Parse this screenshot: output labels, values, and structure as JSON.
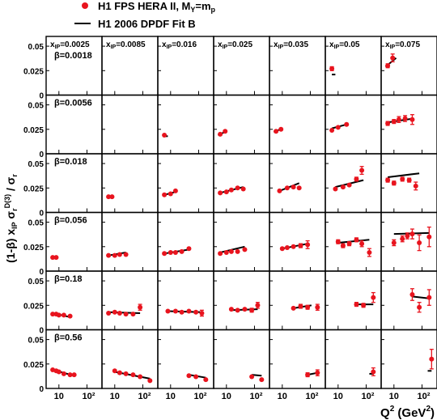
{
  "legend": {
    "data_label": "H1 FPS HERA II,  M",
    "data_label_sub": "Y",
    "data_label_tail": "=m",
    "data_label_tail_sub": "p",
    "model_label": "H1 2006 DPDF Fit B",
    "placement": "top-left",
    "data_color": "#e8141e",
    "model_color": "#000000"
  },
  "xlabel": {
    "main": "Q",
    "sup": "2",
    "unit": " (GeV",
    "unit_sup": "2",
    "close": ")"
  },
  "ylabel": {
    "prefix": "(1-β) x",
    "prefix_sub": "IP",
    "mid": " σ",
    "mid_sub": "r",
    "mid_sup": "D(3)",
    "suffix": " / σ",
    "suffix_sub": "r"
  },
  "chart_data": {
    "type": "scatter",
    "layout": "grid",
    "rows": 6,
    "cols": 7,
    "x_scale": "log",
    "xlim": [
      4,
      300
    ],
    "ylim": [
      0,
      0.06
    ],
    "y_ticks": [
      "0.05",
      "0.025",
      "0"
    ],
    "y_tick_values": [
      0.05,
      0.025,
      0
    ],
    "x_ticks": [
      "10",
      "10²"
    ],
    "x_tick_values": [
      10,
      100
    ],
    "series": [
      {
        "name": "H1 FPS HERA II,  MY=mp",
        "kind": "points",
        "color": "#e8141e"
      },
      {
        "name": "H1 2006 DPDF Fit B",
        "kind": "line",
        "color": "#000000"
      }
    ],
    "column_labels": [
      {
        "pre": "x",
        "sub": "IP",
        "post": "=0.0025"
      },
      {
        "pre": "x",
        "sub": "IP",
        "post": "=0.0085"
      },
      {
        "pre": "x",
        "sub": "IP",
        "post": "=0.016"
      },
      {
        "pre": "x",
        "sub": "IP",
        "post": "=0.025"
      },
      {
        "pre": "x",
        "sub": "IP",
        "post": "=0.035"
      },
      {
        "pre": "x",
        "sub": "IP",
        "post": "=0.05"
      },
      {
        "pre": "x",
        "sub": "IP",
        "post": "=0.075"
      }
    ],
    "row_labels": [
      "β=0.0018",
      "β=0.0056",
      "β=0.018",
      "β=0.056",
      "β=0.18",
      "β=0.56"
    ],
    "panels": [
      {
        "row": 0,
        "col": 5,
        "points": [
          [
            6,
            0.027,
            0.002
          ]
        ],
        "line": [
          [
            6,
            0.021
          ],
          [
            8,
            0.021
          ]
        ]
      },
      {
        "row": 0,
        "col": 6,
        "points": [
          [
            6,
            0.03,
            0.002
          ],
          [
            9,
            0.038,
            0.004
          ]
        ],
        "line": [
          [
            5,
            0.029
          ],
          [
            12,
            0.038
          ]
        ]
      },
      {
        "row": 1,
        "col": 2,
        "points": [
          [
            6,
            0.019,
            0.001
          ]
        ],
        "line": [
          [
            6,
            0.018
          ],
          [
            8,
            0.018
          ]
        ]
      },
      {
        "row": 1,
        "col": 3,
        "points": [
          [
            6,
            0.02,
            0.001
          ],
          [
            9,
            0.023,
            0.001
          ]
        ],
        "line": [
          [
            5,
            0.019
          ],
          [
            10,
            0.023
          ]
        ]
      },
      {
        "row": 1,
        "col": 4,
        "points": [
          [
            6,
            0.023,
            0.001
          ],
          [
            9,
            0.025,
            0.001
          ]
        ],
        "line": [
          [
            5,
            0.022
          ],
          [
            10,
            0.026
          ]
        ]
      },
      {
        "row": 1,
        "col": 5,
        "points": [
          [
            6,
            0.024,
            0.001
          ],
          [
            10,
            0.027,
            0.001
          ],
          [
            20,
            0.03,
            0.001
          ]
        ],
        "line": [
          [
            6,
            0.026
          ],
          [
            20,
            0.03
          ]
        ]
      },
      {
        "row": 1,
        "col": 6,
        "points": [
          [
            6,
            0.031,
            0.002
          ],
          [
            10,
            0.033,
            0.002
          ],
          [
            15,
            0.035,
            0.003
          ],
          [
            25,
            0.036,
            0.003
          ],
          [
            45,
            0.035,
            0.005
          ]
        ],
        "line": [
          [
            6,
            0.032
          ],
          [
            50,
            0.036
          ]
        ]
      },
      {
        "row": 2,
        "col": 1,
        "points": [
          [
            6,
            0.016,
            0.001
          ],
          [
            8,
            0.016,
            0.001
          ]
        ],
        "line": []
      },
      {
        "row": 2,
        "col": 2,
        "points": [
          [
            6,
            0.018,
            0.001
          ],
          [
            10,
            0.019,
            0.001
          ],
          [
            15,
            0.022,
            0.001
          ]
        ],
        "line": [
          [
            6,
            0.018
          ],
          [
            15,
            0.021
          ]
        ]
      },
      {
        "row": 2,
        "col": 3,
        "points": [
          [
            6,
            0.02,
            0.001
          ],
          [
            10,
            0.021,
            0.001
          ],
          [
            15,
            0.023,
            0.001
          ],
          [
            25,
            0.025,
            0.001
          ],
          [
            40,
            0.024,
            0.001
          ]
        ],
        "line": [
          [
            6,
            0.02
          ],
          [
            40,
            0.026
          ]
        ]
      },
      {
        "row": 2,
        "col": 4,
        "points": [
          [
            8,
            0.022,
            0.001
          ],
          [
            15,
            0.025,
            0.001
          ],
          [
            25,
            0.026,
            0.001
          ],
          [
            40,
            0.025,
            0.001
          ]
        ],
        "line": [
          [
            8,
            0.022
          ],
          [
            40,
            0.03
          ]
        ]
      },
      {
        "row": 2,
        "col": 5,
        "points": [
          [
            8,
            0.024,
            0.001
          ],
          [
            15,
            0.026,
            0.001
          ],
          [
            25,
            0.028,
            0.001
          ],
          [
            45,
            0.034,
            0.002
          ],
          [
            70,
            0.043,
            0.004
          ]
        ],
        "line": [
          [
            8,
            0.026
          ],
          [
            80,
            0.033
          ]
        ]
      },
      {
        "row": 2,
        "col": 6,
        "points": [
          [
            6,
            0.033,
            0.002
          ],
          [
            10,
            0.03,
            0.002
          ],
          [
            20,
            0.034,
            0.002
          ],
          [
            35,
            0.033,
            0.002
          ],
          [
            60,
            0.027,
            0.004
          ]
        ],
        "line": [
          [
            6,
            0.036
          ],
          [
            80,
            0.04
          ]
        ]
      },
      {
        "row": 3,
        "col": 0,
        "points": [
          [
            6,
            0.014,
            0.001
          ],
          [
            8,
            0.014,
            0.001
          ]
        ],
        "line": []
      },
      {
        "row": 3,
        "col": 1,
        "points": [
          [
            6,
            0.016,
            0.001
          ],
          [
            10,
            0.016,
            0.001
          ],
          [
            15,
            0.017,
            0.001
          ],
          [
            25,
            0.017,
            0.001
          ]
        ],
        "line": [
          [
            6,
            0.016
          ],
          [
            25,
            0.019
          ]
        ]
      },
      {
        "row": 3,
        "col": 2,
        "points": [
          [
            6,
            0.018,
            0.001
          ],
          [
            10,
            0.019,
            0.001
          ],
          [
            15,
            0.019,
            0.001
          ],
          [
            25,
            0.02,
            0.001
          ],
          [
            45,
            0.023,
            0.001
          ]
        ],
        "line": [
          [
            6,
            0.018
          ],
          [
            45,
            0.022
          ]
        ]
      },
      {
        "row": 3,
        "col": 3,
        "points": [
          [
            6,
            0.018,
            0.001
          ],
          [
            10,
            0.019,
            0.001
          ],
          [
            15,
            0.02,
            0.001
          ],
          [
            25,
            0.02,
            0.001
          ],
          [
            45,
            0.022,
            0.001
          ]
        ],
        "line": [
          [
            6,
            0.019
          ],
          [
            45,
            0.025
          ]
        ]
      },
      {
        "row": 3,
        "col": 4,
        "points": [
          [
            10,
            0.023,
            0.001
          ],
          [
            15,
            0.024,
            0.001
          ],
          [
            25,
            0.025,
            0.001
          ],
          [
            45,
            0.026,
            0.002
          ],
          [
            80,
            0.027,
            0.004
          ]
        ],
        "line": [
          [
            10,
            0.023
          ],
          [
            80,
            0.028
          ]
        ]
      },
      {
        "row": 3,
        "col": 5,
        "points": [
          [
            10,
            0.03,
            0.002
          ],
          [
            15,
            0.026,
            0.002
          ],
          [
            25,
            0.028,
            0.002
          ],
          [
            45,
            0.032,
            0.002
          ],
          [
            70,
            0.028,
            0.003
          ],
          [
            130,
            0.019,
            0.004
          ]
        ],
        "line": [
          [
            10,
            0.029
          ],
          [
            130,
            0.032
          ]
        ]
      },
      {
        "row": 3,
        "col": 6,
        "points": [
          [
            10,
            0.029,
            0.003
          ],
          [
            20,
            0.033,
            0.003
          ],
          [
            30,
            0.036,
            0.003
          ],
          [
            45,
            0.038,
            0.005
          ],
          [
            80,
            0.029,
            0.008
          ],
          [
            180,
            0.035,
            0.01
          ]
        ],
        "line": [
          [
            10,
            0.038
          ],
          [
            180,
            0.039
          ]
        ]
      },
      {
        "row": 4,
        "col": 0,
        "points": [
          [
            6,
            0.016,
            0.001
          ],
          [
            8,
            0.016,
            0.001
          ],
          [
            10,
            0.015,
            0.001
          ],
          [
            15,
            0.015,
            0.001
          ],
          [
            25,
            0.014,
            0.001
          ]
        ],
        "line": [
          [
            6,
            0.017
          ],
          [
            25,
            0.013
          ]
        ]
      },
      {
        "row": 4,
        "col": 1,
        "points": [
          [
            6,
            0.017,
            0.001
          ],
          [
            10,
            0.018,
            0.001
          ],
          [
            15,
            0.017,
            0.001
          ],
          [
            25,
            0.016,
            0.001
          ],
          [
            45,
            0.016,
            0.001
          ],
          [
            80,
            0.023,
            0.003
          ]
        ],
        "line": [
          [
            6,
            0.018
          ],
          [
            80,
            0.017
          ]
        ]
      },
      {
        "row": 4,
        "col": 2,
        "points": [
          [
            8,
            0.019,
            0.001
          ],
          [
            15,
            0.019,
            0.001
          ],
          [
            25,
            0.018,
            0.001
          ],
          [
            45,
            0.019,
            0.001
          ],
          [
            80,
            0.018,
            0.001
          ],
          [
            130,
            0.017,
            0.003
          ]
        ],
        "line": [
          [
            8,
            0.019
          ],
          [
            130,
            0.018
          ]
        ]
      },
      {
        "row": 4,
        "col": 3,
        "points": [
          [
            15,
            0.021,
            0.001
          ],
          [
            25,
            0.02,
            0.001
          ],
          [
            45,
            0.021,
            0.001
          ],
          [
            80,
            0.02,
            0.002
          ],
          [
            130,
            0.025,
            0.003
          ]
        ],
        "line": [
          [
            15,
            0.02
          ],
          [
            130,
            0.021
          ]
        ]
      },
      {
        "row": 4,
        "col": 4,
        "points": [
          [
            25,
            0.022,
            0.001
          ],
          [
            45,
            0.024,
            0.002
          ],
          [
            80,
            0.023,
            0.002
          ],
          [
            180,
            0.023,
            0.003
          ]
        ],
        "line": [
          [
            25,
            0.022
          ],
          [
            110,
            0.025
          ]
        ]
      },
      {
        "row": 4,
        "col": 5,
        "points": [
          [
            45,
            0.026,
            0.002
          ],
          [
            80,
            0.025,
            0.002
          ],
          [
            180,
            0.033,
            0.005
          ]
        ],
        "line": [
          [
            45,
            0.026
          ],
          [
            180,
            0.026
          ]
        ]
      },
      {
        "row": 4,
        "col": 6,
        "points": [
          [
            45,
            0.036,
            0.006
          ],
          [
            80,
            0.023,
            0.005
          ],
          [
            180,
            0.033,
            0.008
          ]
        ],
        "line": [
          [
            45,
            0.034
          ],
          [
            180,
            0.032
          ]
        ]
      },
      {
        "row": 5,
        "col": 0,
        "points": [
          [
            6,
            0.019,
            0.001
          ],
          [
            8,
            0.018,
            0.001
          ],
          [
            10,
            0.017,
            0.001
          ],
          [
            15,
            0.015,
            0.001
          ],
          [
            25,
            0.014,
            0.001
          ],
          [
            35,
            0.014,
            0.001
          ]
        ],
        "line": [
          [
            6,
            0.019
          ],
          [
            35,
            0.013
          ]
        ]
      },
      {
        "row": 5,
        "col": 1,
        "points": [
          [
            10,
            0.018,
            0.001
          ],
          [
            15,
            0.016,
            0.001
          ],
          [
            25,
            0.015,
            0.001
          ],
          [
            45,
            0.014,
            0.001
          ],
          [
            80,
            0.012,
            0.001
          ],
          [
            180,
            0.008,
            0.001
          ]
        ],
        "line": [
          [
            10,
            0.017
          ],
          [
            180,
            0.01
          ]
        ]
      },
      {
        "row": 5,
        "col": 2,
        "points": [
          [
            45,
            0.013,
            0.001
          ],
          [
            80,
            0.012,
            0.001
          ],
          [
            180,
            0.009,
            0.001
          ]
        ],
        "line": [
          [
            45,
            0.014
          ],
          [
            180,
            0.011
          ]
        ]
      },
      {
        "row": 5,
        "col": 3,
        "points": [
          [
            80,
            0.012,
            0.001
          ],
          [
            180,
            0.009,
            0.001
          ]
        ],
        "line": [
          [
            80,
            0.014
          ],
          [
            180,
            0.013
          ]
        ]
      },
      {
        "row": 5,
        "col": 4,
        "points": [
          [
            80,
            0.014,
            0.002
          ],
          [
            180,
            0.016,
            0.003
          ]
        ],
        "line": [
          [
            80,
            0.014
          ],
          [
            180,
            0.016
          ]
        ]
      },
      {
        "row": 5,
        "col": 5,
        "points": [
          [
            180,
            0.017,
            0.004
          ]
        ],
        "line": [
          [
            130,
            0.015
          ],
          [
            180,
            0.015
          ]
        ]
      },
      {
        "row": 5,
        "col": 6,
        "points": [
          [
            220,
            0.03,
            0.01
          ]
        ],
        "line": [
          [
            160,
            0.018
          ],
          [
            220,
            0.018
          ]
        ]
      }
    ]
  }
}
